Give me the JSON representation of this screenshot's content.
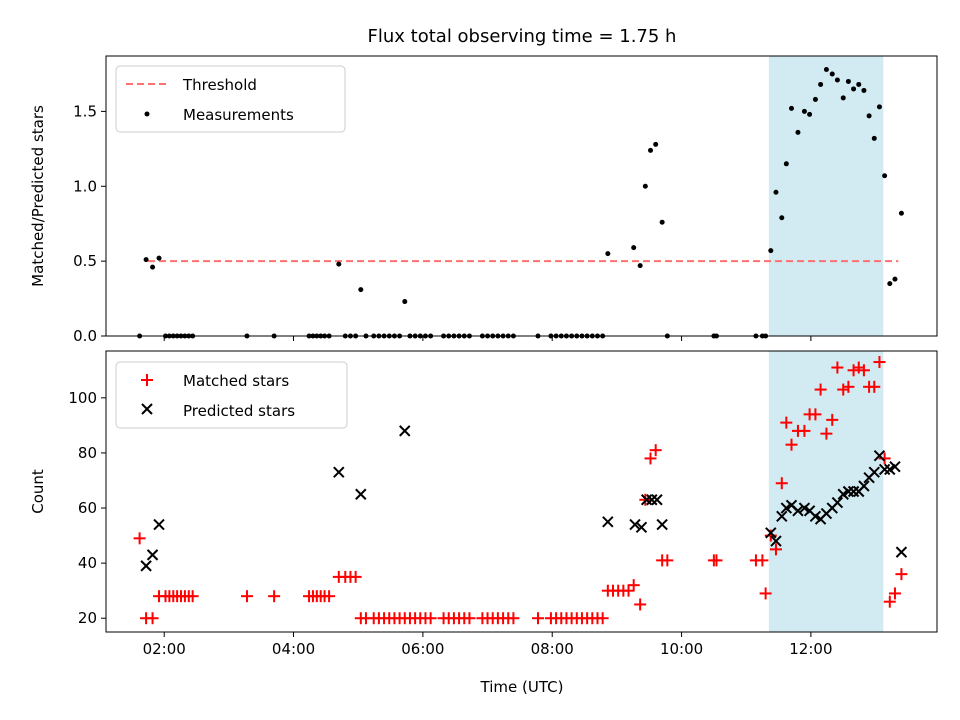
{
  "chart_data": [
    {
      "type": "scatter",
      "title": "Flux total observing time = 1.75 h",
      "xlabel": "",
      "ylabel": "Matched/Predicted stars",
      "xlim": [
        1.1,
        13.95
      ],
      "ylim": [
        0,
        1.87
      ],
      "xticks": [
        2,
        4,
        6,
        8,
        10,
        12
      ],
      "xtick_labels": [
        "",
        "",
        "",
        "",
        "",
        ""
      ],
      "yticks": [
        0.0,
        0.5,
        1.0,
        1.5
      ],
      "ytick_labels": [
        "0.0",
        "0.5",
        "1.0",
        "1.5"
      ],
      "highlight_span": [
        11.35,
        13.12
      ],
      "highlight_color": "#add8e6",
      "legend_position": "upper left",
      "threshold": {
        "name": "Threshold",
        "y": 0.5,
        "x_range": [
          1.75,
          13.35
        ],
        "color": "#ff7070",
        "style": "dashed"
      },
      "series": [
        {
          "name": "Measurements",
          "color": "#000000",
          "x": [
            1.62,
            1.72,
            1.82,
            1.92,
            2.02,
            2.08,
            2.14,
            2.2,
            2.26,
            2.32,
            2.38,
            2.44,
            3.28,
            3.7,
            4.24,
            4.3,
            4.36,
            4.42,
            4.48,
            4.55,
            4.7,
            4.8,
            4.88,
            4.96,
            5.04,
            5.12,
            5.24,
            5.32,
            5.4,
            5.48,
            5.56,
            5.64,
            5.72,
            5.8,
            5.88,
            5.96,
            6.04,
            6.12,
            6.32,
            6.4,
            6.48,
            6.56,
            6.64,
            6.72,
            6.92,
            7.0,
            7.08,
            7.16,
            7.24,
            7.32,
            7.4,
            7.78,
            7.98,
            8.06,
            8.14,
            8.22,
            8.3,
            8.38,
            8.46,
            8.54,
            8.62,
            8.7,
            8.78,
            8.86,
            9.26,
            9.36,
            9.44,
            9.52,
            9.6,
            9.7,
            9.78,
            10.5,
            10.54,
            11.15,
            11.25,
            11.3,
            11.38,
            11.46,
            11.55,
            11.62,
            11.7,
            11.8,
            11.9,
            11.98,
            12.07,
            12.15,
            12.24,
            12.33,
            12.41,
            12.5,
            12.58,
            12.66,
            12.74,
            12.82,
            12.9,
            12.98,
            13.06,
            13.14,
            13.22,
            13.3,
            13.4
          ],
          "y": [
            0.0,
            0.51,
            0.46,
            0.52,
            0.0,
            0.0,
            0.0,
            0.0,
            0.0,
            0.0,
            0.0,
            0.0,
            0.0,
            0.0,
            0.0,
            0.0,
            0.0,
            0.0,
            0.0,
            0.0,
            0.48,
            0.0,
            0.0,
            0.0,
            0.31,
            0.0,
            0.0,
            0.0,
            0.0,
            0.0,
            0.0,
            0.0,
            0.23,
            0.0,
            0.0,
            0.0,
            0.0,
            0.0,
            0.0,
            0.0,
            0.0,
            0.0,
            0.0,
            0.0,
            0.0,
            0.0,
            0.0,
            0.0,
            0.0,
            0.0,
            0.0,
            0.0,
            0.0,
            0.0,
            0.0,
            0.0,
            0.0,
            0.0,
            0.0,
            0.0,
            0.0,
            0.0,
            0.0,
            0.55,
            0.59,
            0.47,
            1.0,
            1.24,
            1.28,
            0.76,
            0.0,
            0.0,
            0.0,
            0.0,
            0.0,
            0.0,
            0.57,
            0.96,
            0.79,
            1.15,
            1.52,
            1.36,
            1.5,
            1.48,
            1.58,
            1.68,
            1.78,
            1.75,
            1.71,
            1.59,
            1.7,
            1.65,
            1.68,
            1.64,
            1.47,
            1.32,
            1.53,
            1.07,
            0.35,
            0.38,
            0.82
          ]
        }
      ]
    },
    {
      "type": "scatter",
      "title": "",
      "xlabel": "Time (UTC)",
      "ylabel": "Count",
      "xlim": [
        1.1,
        13.95
      ],
      "ylim": [
        15,
        117
      ],
      "xticks": [
        2,
        4,
        6,
        8,
        10,
        12
      ],
      "xtick_labels": [
        "02:00",
        "04:00",
        "06:00",
        "08:00",
        "10:00",
        "12:00"
      ],
      "yticks": [
        20,
        40,
        60,
        80,
        100
      ],
      "ytick_labels": [
        "20",
        "40",
        "60",
        "80",
        "100"
      ],
      "highlight_span": [
        11.35,
        13.12
      ],
      "highlight_color": "#add8e6",
      "legend_position": "upper left",
      "series": [
        {
          "name": "Matched stars",
          "color": "#ff0000",
          "marker": "plus",
          "x": [
            1.62,
            1.72,
            1.82,
            1.92,
            2.02,
            2.08,
            2.14,
            2.2,
            2.26,
            2.32,
            2.38,
            2.44,
            3.28,
            3.7,
            4.24,
            4.3,
            4.36,
            4.42,
            4.48,
            4.55,
            4.7,
            4.8,
            4.88,
            4.96,
            5.04,
            5.12,
            5.24,
            5.32,
            5.4,
            5.48,
            5.56,
            5.64,
            5.72,
            5.8,
            5.88,
            5.96,
            6.04,
            6.12,
            6.32,
            6.4,
            6.48,
            6.56,
            6.64,
            6.72,
            6.92,
            7.0,
            7.08,
            7.16,
            7.24,
            7.32,
            7.4,
            7.78,
            7.98,
            8.06,
            8.14,
            8.22,
            8.3,
            8.38,
            8.46,
            8.54,
            8.62,
            8.7,
            8.78,
            8.86,
            8.94,
            9.02,
            9.1,
            9.18,
            9.26,
            9.36,
            9.44,
            9.52,
            9.6,
            9.7,
            9.78,
            10.5,
            10.54,
            11.15,
            11.25,
            11.3,
            11.38,
            11.46,
            11.55,
            11.62,
            11.7,
            11.8,
            11.9,
            11.98,
            12.07,
            12.15,
            12.24,
            12.33,
            12.41,
            12.5,
            12.58,
            12.66,
            12.74,
            12.82,
            12.9,
            12.98,
            13.06,
            13.14,
            13.22,
            13.3,
            13.4
          ],
          "y": [
            49,
            20,
            20,
            28,
            28,
            28,
            28,
            28,
            28,
            28,
            28,
            28,
            28,
            28,
            28,
            28,
            28,
            28,
            28,
            28,
            35,
            35,
            35,
            35,
            20,
            20,
            20,
            20,
            20,
            20,
            20,
            20,
            20,
            20,
            20,
            20,
            20,
            20,
            20,
            20,
            20,
            20,
            20,
            20,
            20,
            20,
            20,
            20,
            20,
            20,
            20,
            20,
            20,
            20,
            20,
            20,
            20,
            20,
            20,
            20,
            20,
            20,
            20,
            30,
            30,
            30,
            30,
            30,
            32,
            25,
            63,
            78,
            81,
            41,
            41,
            41,
            41,
            41,
            41,
            29,
            50,
            45,
            69,
            91,
            83,
            88,
            88,
            94,
            94,
            103,
            87,
            92,
            111,
            103,
            104,
            110,
            111,
            110,
            104,
            104,
            113,
            78,
            26,
            29,
            36
          ]
        },
        {
          "name": "Predicted stars",
          "color": "#000000",
          "marker": "x",
          "x": [
            1.72,
            1.82,
            1.92,
            4.7,
            5.04,
            5.72,
            8.86,
            9.28,
            9.38,
            9.46,
            9.54,
            9.62,
            9.7,
            11.38,
            11.46,
            11.55,
            11.62,
            11.7,
            11.8,
            11.9,
            11.98,
            12.07,
            12.15,
            12.24,
            12.33,
            12.41,
            12.5,
            12.58,
            12.66,
            12.74,
            12.82,
            12.9,
            12.98,
            13.06,
            13.14,
            13.22,
            13.3,
            13.4
          ],
          "y": [
            39,
            43,
            54,
            73,
            65,
            88,
            55,
            54,
            53,
            63,
            63,
            63,
            54,
            51,
            48,
            57,
            60,
            61,
            59,
            60,
            59,
            57,
            56,
            58,
            60,
            62,
            65,
            66,
            66,
            66,
            68,
            71,
            73,
            79,
            74,
            74,
            75,
            44
          ]
        }
      ]
    }
  ]
}
